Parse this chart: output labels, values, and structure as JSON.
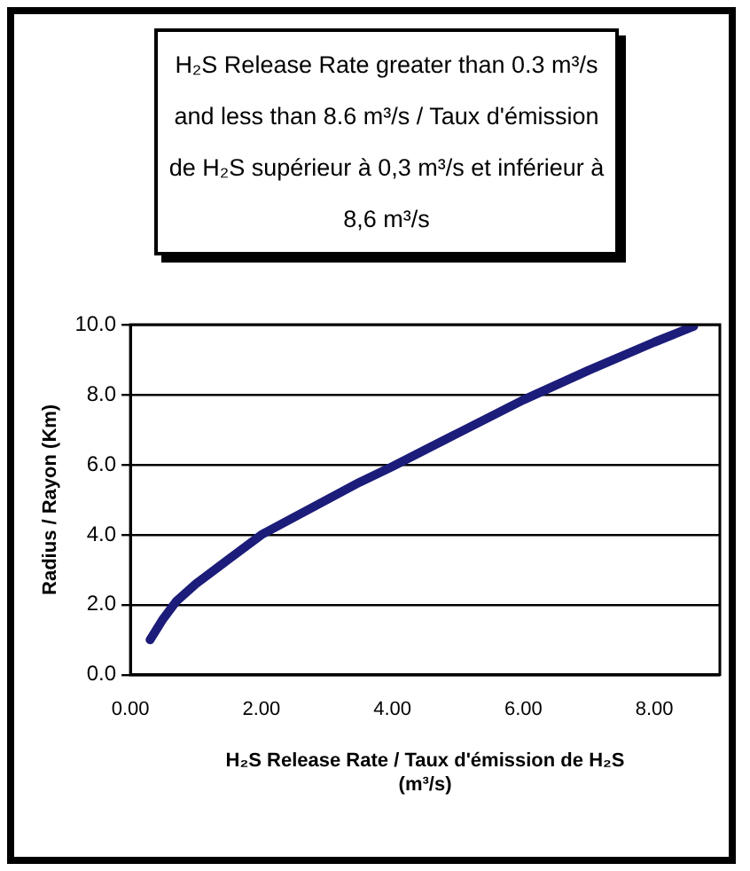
{
  "chart_data": {
    "type": "line",
    "title": "H₂S Release Rate greater than 0.3 m³/s and less than 8.6 m³/s / Taux d'émission de H₂S supérieur à 0,3 m³/s et inférieur à 8,6 m³/s",
    "xlabel": "H₂S Release Rate / Taux d'émission de H₂S (m³/s)",
    "ylabel": "Radius / Rayon (Km)",
    "x": [
      0.3,
      0.5,
      0.7,
      1.0,
      1.5,
      2.0,
      2.5,
      3.0,
      3.5,
      4.0,
      5.0,
      6.0,
      7.0,
      8.0,
      8.6
    ],
    "series": [
      {
        "color": "#1c1c7a",
        "values": [
          1.0,
          1.6,
          2.1,
          2.6,
          3.3,
          4.0,
          4.5,
          5.0,
          5.5,
          5.95,
          6.9,
          7.85,
          8.7,
          9.5,
          9.95
        ]
      }
    ],
    "xlim": [
      0,
      9
    ],
    "xticks": [
      {
        "value": 0,
        "label": "0.00"
      },
      {
        "value": 2,
        "label": "2.00"
      },
      {
        "value": 4,
        "label": "4.00"
      },
      {
        "value": 6,
        "label": "6.00"
      },
      {
        "value": 8,
        "label": "8.00"
      }
    ],
    "ylim": [
      0,
      10
    ],
    "yticks": [
      {
        "value": 0,
        "label": "0.0"
      },
      {
        "value": 2,
        "label": "2.0"
      },
      {
        "value": 4,
        "label": "4.0"
      },
      {
        "value": 6,
        "label": "6.0"
      },
      {
        "value": 8,
        "label": "8.0"
      },
      {
        "value": 10,
        "label": "10.0"
      }
    ],
    "grid": "y",
    "legend": false,
    "marker": "none",
    "line_style": "solid"
  }
}
